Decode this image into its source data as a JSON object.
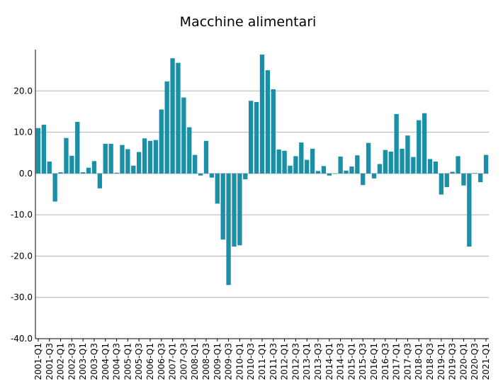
{
  "chart_data": {
    "type": "bar",
    "title": "Macchine alimentari",
    "xlabel": "",
    "ylabel": "",
    "ylim": [
      -40,
      30
    ],
    "yticks": [
      -40.0,
      -30.0,
      -20.0,
      -10.0,
      0.0,
      10.0,
      20.0
    ],
    "grid": true,
    "bar_color": "#1a8fa8",
    "categories": [
      "2001-Q1",
      "2001-Q2",
      "2001-Q3",
      "2001-Q4",
      "2002-Q1",
      "2002-Q2",
      "2002-Q3",
      "2002-Q4",
      "2003-Q1",
      "2003-Q2",
      "2003-Q3",
      "2003-Q4",
      "2004-Q1",
      "2004-Q2",
      "2004-Q3",
      "2004-Q4",
      "2005-Q1",
      "2005-Q2",
      "2005-Q3",
      "2005-Q4",
      "2006-Q1",
      "2006-Q2",
      "2006-Q3",
      "2006-Q4",
      "2007-Q1",
      "2007-Q2",
      "2007-Q3",
      "2007-Q4",
      "2008-Q1",
      "2008-Q2",
      "2008-Q3",
      "2008-Q4",
      "2009-Q1",
      "2009-Q2",
      "2009-Q3",
      "2009-Q4",
      "2010-Q1",
      "2010-Q2",
      "2010-Q3",
      "2010-Q4",
      "2011-Q1",
      "2011-Q2",
      "2011-Q3",
      "2011-Q4",
      "2012-Q1",
      "2012-Q2",
      "2012-Q3",
      "2012-Q4",
      "2013-Q1",
      "2013-Q2",
      "2013-Q3",
      "2013-Q4",
      "2014-Q1",
      "2014-Q2",
      "2014-Q3",
      "2014-Q4",
      "2015-Q1",
      "2015-Q2",
      "2015-Q3",
      "2015-Q4",
      "2016-Q1",
      "2016-Q2",
      "2016-Q3",
      "2016-Q4",
      "2017-Q1",
      "2017-Q2",
      "2017-Q3",
      "2017-Q4",
      "2018-Q1",
      "2018-Q2",
      "2018-Q3",
      "2018-Q4",
      "2019-Q1",
      "2019-Q2",
      "2019-Q3",
      "2019-Q4",
      "2020-Q1",
      "2020-Q2",
      "2020-Q3",
      "2020-Q4",
      "2021-Q1"
    ],
    "tick_labels": [
      "2001-Q1",
      "2001-Q3",
      "2002-Q1",
      "2002-Q3",
      "2003-Q1",
      "2003-Q3",
      "2004-Q1",
      "2004-Q3",
      "2005-Q1",
      "2005-Q3",
      "2006-Q1",
      "2006-Q3",
      "2007-Q1",
      "2007-Q3",
      "2008-Q1",
      "2008-Q3",
      "2009-Q1",
      "2009-Q3",
      "2010-Q1",
      "2010-Q3",
      "2011-Q1",
      "2011-Q3",
      "2012-Q1",
      "2012-Q3",
      "2013-Q1",
      "2013-Q3",
      "2014-Q1",
      "2014-Q3",
      "2015-Q1",
      "2015-Q3",
      "2016-Q1",
      "2016-Q3",
      "2017-Q1",
      "2017-Q3",
      "2018-Q1",
      "2018-Q3",
      "2019-Q1",
      "2019-Q3",
      "2020-Q1",
      "2020-Q3",
      "2021-Q1"
    ],
    "values": [
      11.0,
      11.8,
      2.9,
      -6.8,
      0.3,
      8.6,
      4.3,
      12.5,
      0.3,
      1.4,
      3.0,
      -3.6,
      7.2,
      7.2,
      0.2,
      6.9,
      5.9,
      1.9,
      5.2,
      8.5,
      7.9,
      8.1,
      15.5,
      22.3,
      27.9,
      26.8,
      18.4,
      11.2,
      4.5,
      -0.5,
      7.9,
      -1.0,
      -7.3,
      -16.0,
      -27.0,
      -17.7,
      -17.4,
      -1.4,
      17.6,
      17.3,
      28.8,
      25.0,
      20.4,
      5.8,
      5.5,
      1.9,
      4.2,
      7.5,
      3.3,
      6.0,
      0.6,
      1.8,
      -0.5,
      0.0,
      4.1,
      0.7,
      1.7,
      4.4,
      -2.8,
      7.4,
      -1.2,
      2.3,
      5.7,
      5.3,
      14.4,
      6.0,
      9.2,
      4.0,
      12.9,
      14.6,
      3.5,
      2.9,
      -5.1,
      -3.3,
      0.4,
      4.2,
      -2.9,
      -17.7,
      0.1,
      -2.1,
      4.5
    ]
  }
}
